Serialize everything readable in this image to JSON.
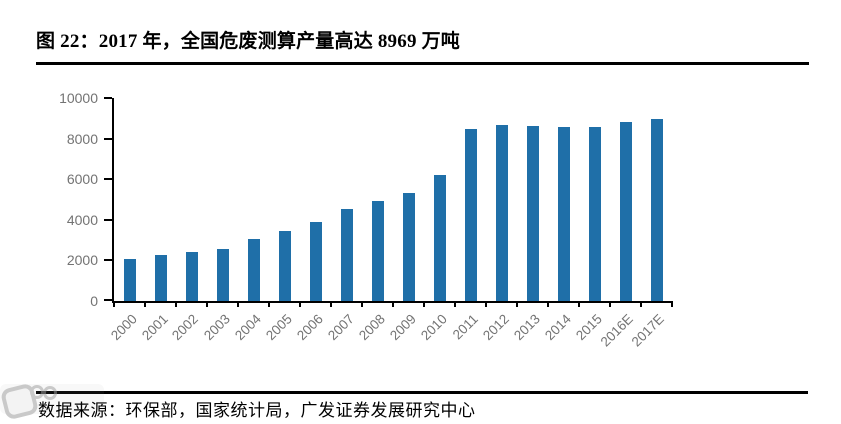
{
  "page": {
    "title": "图 22：2017 年，全国危废测算产量高达 8969 万吨"
  },
  "footer": {
    "source": "数据来源：环保部，国家统计局，广发证券发展研究中心"
  },
  "watermark": {
    "icon": "stamp-logo-with-two-circles"
  },
  "chart_data": {
    "type": "bar",
    "title": "图 22：2017 年，全国危废测算产量高达 8969 万吨",
    "categories": [
      "2000",
      "2001",
      "2002",
      "2003",
      "2004",
      "2005",
      "2006",
      "2007",
      "2008",
      "2009",
      "2010",
      "2011",
      "2012",
      "2013",
      "2014",
      "2015",
      "2016E",
      "2017E"
    ],
    "values": [
      2050,
      2250,
      2400,
      2550,
      3050,
      3450,
      3900,
      4550,
      4950,
      5300,
      6200,
      8450,
      8650,
      8600,
      8550,
      8580,
      8800,
      8969
    ],
    "unit": "万吨",
    "xlabel": "",
    "ylabel": "",
    "ylim": [
      0,
      10000
    ],
    "yticks": [
      0,
      2000,
      4000,
      6000,
      8000,
      10000
    ],
    "grid": false,
    "legend_position": "none",
    "bar_color": "#1f6fa8",
    "axis_color": "#000000",
    "tick_label_color": "#737373",
    "x_label_rotation_deg": -45
  }
}
